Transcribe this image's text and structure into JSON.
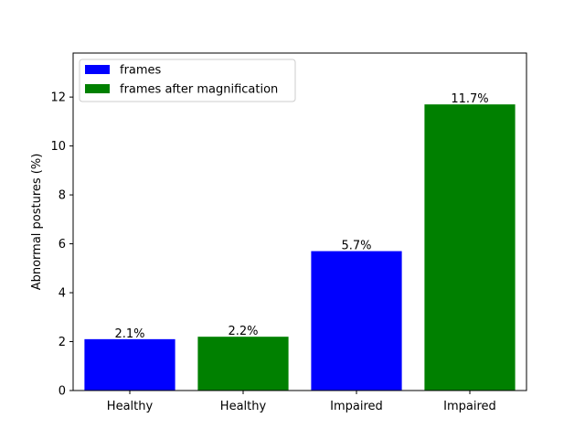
{
  "chart_data": {
    "type": "bar",
    "categories": [
      "Healthy",
      "Healthy",
      "Impaired",
      "Impaired"
    ],
    "values": [
      2.1,
      2.2,
      5.7,
      11.7
    ],
    "data_labels": [
      "2.1%",
      "2.2%",
      "5.7%",
      "11.7%"
    ],
    "bar_series": [
      "frames",
      "frames after magnification",
      "frames",
      "frames after magnification"
    ],
    "series": [
      {
        "name": "frames",
        "color": "#0000ff"
      },
      {
        "name": "frames after magnification",
        "color": "#008000"
      }
    ],
    "ylabel": "Abnormal postures (%)",
    "ylim": [
      0,
      13.8
    ],
    "yticks": [
      0,
      2,
      4,
      6,
      8,
      10,
      12
    ],
    "grid": false,
    "legend_position": "top-left"
  }
}
